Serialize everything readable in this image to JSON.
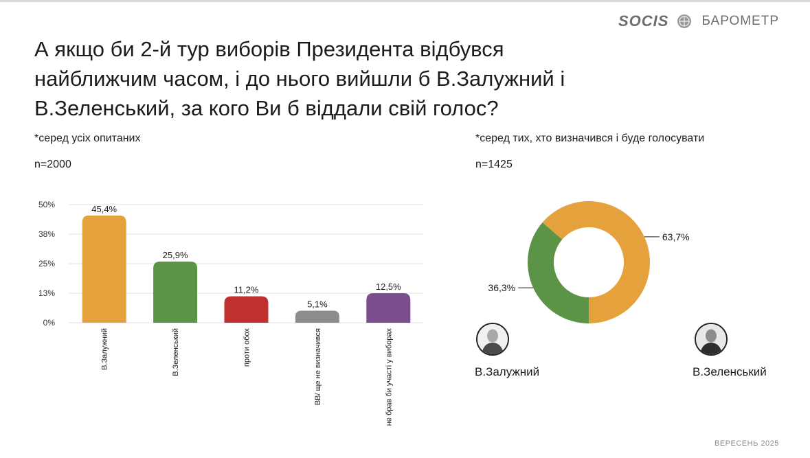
{
  "brand": {
    "logo": "SOCIS",
    "name": "БАРОМЕТР"
  },
  "title": "А якщо би 2-й тур виборів Президента відбувся найближчим часом, і до нього вийшли б В.Залужний і В.Зеленський, за кого Ви б віддали свій голос?",
  "left_panel": {
    "note": "*серед усіх опитаних",
    "n": "n=2000"
  },
  "right_panel": {
    "note": "*серед тих, хто визначився і буде голосувати",
    "n": "n=1425"
  },
  "candidates": [
    {
      "label": "В.Залужний",
      "icon": "portrait-zaluzhnyi-icon"
    },
    {
      "label": "В.Зеленський",
      "icon": "portrait-zelenskyi-icon"
    }
  ],
  "footer": "ВЕРЕСЕНЬ 2025",
  "chart_data": [
    {
      "type": "bar",
      "categories": [
        "В.Залужний",
        "В.Зеленський",
        "проти обох",
        "ВВ/ ще не визначився",
        "не брав би участі у виборах"
      ],
      "values": [
        45.4,
        25.9,
        11.2,
        5.1,
        12.5
      ],
      "value_labels": [
        "45,4%",
        "25,9%",
        "11,2%",
        "5,1%",
        "12,5%"
      ],
      "colors": [
        "#E5A23C",
        "#5B9446",
        "#C0302E",
        "#8C8C8C",
        "#7B4F8D"
      ],
      "y_ticks": [
        0,
        12.5,
        25,
        37.5,
        50
      ],
      "y_tick_labels": [
        "0%",
        "13%",
        "25%",
        "38%",
        "50%"
      ],
      "ylim": [
        0,
        50
      ],
      "title": "",
      "xlabel": "",
      "ylabel": "",
      "grid": true
    },
    {
      "type": "pie",
      "donut": true,
      "categories": [
        "В.Залужний",
        "В.Зеленський"
      ],
      "values": [
        63.7,
        36.3
      ],
      "value_labels": [
        "63,7%",
        "36,3%"
      ],
      "colors": [
        "#E5A23C",
        "#5B9446"
      ],
      "title": ""
    }
  ]
}
